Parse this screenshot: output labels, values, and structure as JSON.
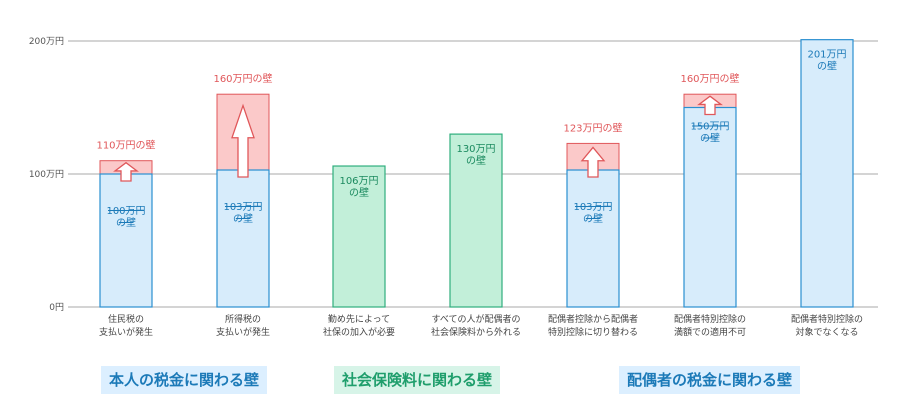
{
  "chart_data": {
    "type": "bar",
    "y_tick_labels": [
      "0円",
      "100万円",
      "200万円"
    ],
    "ylim": [
      0,
      200
    ],
    "unit": "万円",
    "grid": true,
    "categories": [
      [
        "住民税の",
        "支払いが発生"
      ],
      [
        "所得税の",
        "支払いが発生"
      ],
      [
        "勤め先によって",
        "社保の加入が必要"
      ],
      [
        "すべての人が配偶者の",
        "社会保険料から外れる"
      ],
      [
        "配偶者控除から配偶者",
        "特別控除に切り替わる"
      ],
      [
        "配偶者特別控除の",
        "満額での適用不可"
      ],
      [
        "配偶者特別控除の",
        "対象でなくなる"
      ]
    ],
    "bars": [
      {
        "category_index": 0,
        "group": "tax_self",
        "value": 110,
        "previous_value": 100,
        "label": "110万円の壁",
        "previous_label": [
          "100万円",
          "の壁"
        ]
      },
      {
        "category_index": 1,
        "group": "tax_self",
        "value": 160,
        "previous_value": 103,
        "label": "160万円の壁",
        "previous_label": [
          "103万円",
          "の壁"
        ]
      },
      {
        "category_index": 2,
        "group": "social",
        "value": 106,
        "previous_value": null,
        "label": [
          "106万円",
          "の壁"
        ]
      },
      {
        "category_index": 3,
        "group": "social",
        "value": 130,
        "previous_value": null,
        "label": [
          "130万円",
          "の壁"
        ]
      },
      {
        "category_index": 4,
        "group": "tax_spouse",
        "value": 123,
        "previous_value": 103,
        "label": "123万円の壁",
        "previous_label": [
          "103万円",
          "の壁"
        ]
      },
      {
        "category_index": 5,
        "group": "tax_spouse",
        "value": 160,
        "previous_value": 150,
        "label": "160万円の壁",
        "previous_label": [
          "150万円",
          "の壁"
        ]
      },
      {
        "category_index": 6,
        "group": "tax_spouse",
        "value": 201,
        "previous_value": null,
        "label": [
          "201万円",
          "の壁"
        ]
      }
    ],
    "groups": [
      {
        "key": "tax_self",
        "title": "本人の税金に関わる壁",
        "first": 0,
        "last": 1
      },
      {
        "key": "social",
        "title": "社会保険料に関わる壁",
        "first": 2,
        "last": 3
      },
      {
        "key": "tax_spouse",
        "title": "配偶者の税金に関わる壁",
        "first": 4,
        "last": 6
      }
    ],
    "colors": {
      "tax_bar_fill": "#d7ecfb",
      "tax_bar_stroke": "#2a8fd0",
      "social_bar_fill": "#c2efd9",
      "social_bar_stroke": "#2fae7d",
      "increase_fill": "#fbc9c9",
      "increase_stroke": "#e0575a",
      "increase_label": "#e0575a",
      "old_label": "#1c7ab8",
      "new_label": "#1c7ab8",
      "social_label": "#1b8a5f",
      "tax_group_title": "#1c7ab8",
      "tax_group_bg": "#dcefff",
      "social_group_title": "#1f9e6c",
      "social_group_bg": "#d7f4e8",
      "grid": "#a8a8a8",
      "axis_text": "#555555",
      "category_text": "#444444"
    }
  }
}
